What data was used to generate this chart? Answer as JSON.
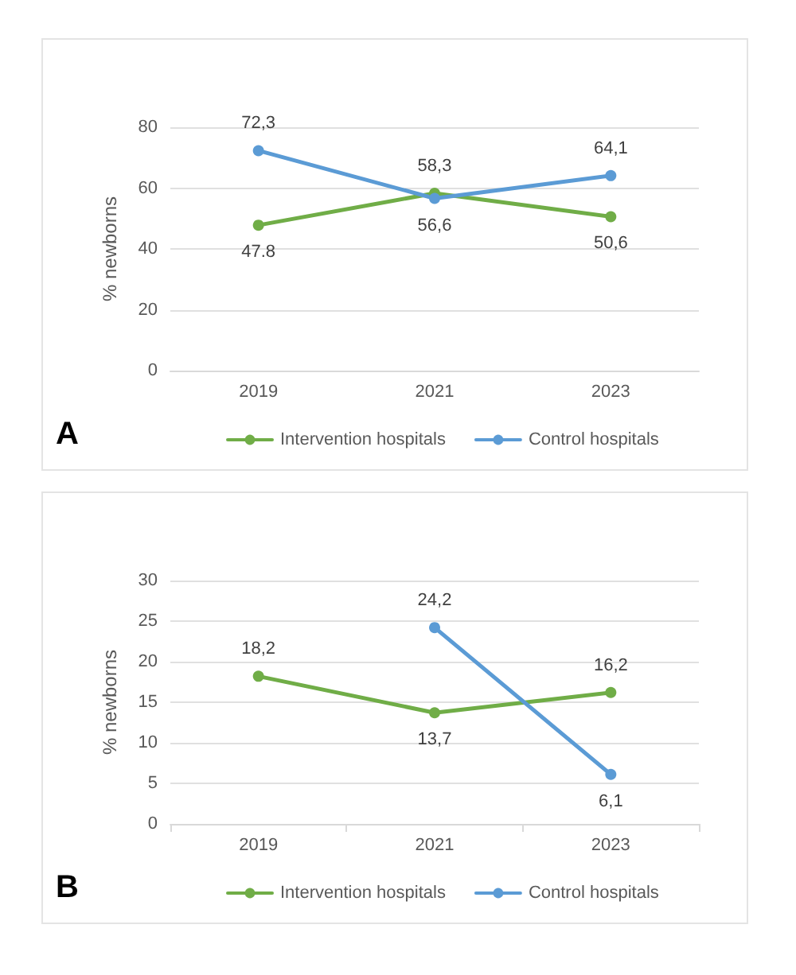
{
  "chart_data": [
    {
      "type": "line",
      "ylabel": "% newborns",
      "categories": [
        "2019",
        "2021",
        "2023"
      ],
      "ylim": [
        0,
        80
      ],
      "yticks": [
        0,
        20,
        40,
        60,
        80
      ],
      "grid": "y",
      "legend": "bottom",
      "marker": "circle",
      "line_style": "solid",
      "annotations": [
        "A"
      ],
      "series": [
        {
          "name": "Intervention hospitals",
          "color": "#70ad47",
          "values": [
            47.8,
            58.3,
            50.6
          ],
          "value_labels": [
            "47.8",
            "58,3",
            "50,6"
          ]
        },
        {
          "name": "Control hospitals",
          "color": "#5b9bd5",
          "values": [
            72.3,
            56.6,
            64.1
          ],
          "value_labels": [
            "72,3",
            "56,6",
            "64,1"
          ]
        }
      ]
    },
    {
      "type": "line",
      "ylabel": "% newborns",
      "categories": [
        "2019",
        "2021",
        "2023"
      ],
      "ylim": [
        0,
        30
      ],
      "yticks": [
        0,
        5,
        10,
        15,
        20,
        25,
        30
      ],
      "grid": "y",
      "legend": "bottom",
      "marker": "circle",
      "line_style": "solid",
      "annotations": [
        "B"
      ],
      "series": [
        {
          "name": "Intervention hospitals",
          "color": "#70ad47",
          "values": [
            18.2,
            13.7,
            16.2
          ],
          "value_labels": [
            "18,2",
            "13,7",
            "16,2"
          ]
        },
        {
          "name": "Control hospitals",
          "color": "#5b9bd5",
          "values": [
            null,
            24.2,
            6.1
          ],
          "value_labels": [
            null,
            "24,2",
            "6,1"
          ]
        }
      ]
    }
  ]
}
